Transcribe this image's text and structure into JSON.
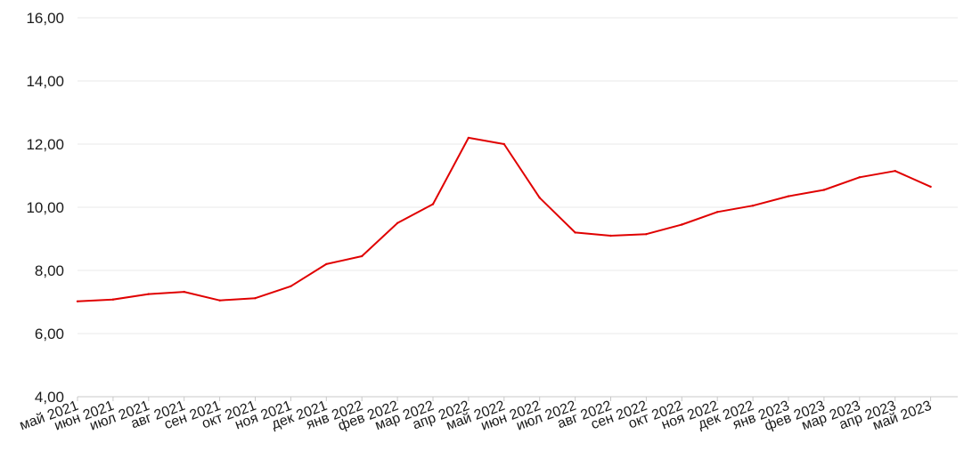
{
  "chart_data": {
    "type": "line",
    "title": "",
    "xlabel": "",
    "ylabel": "",
    "ylim": [
      4,
      16
    ],
    "yticks": [
      "4,00",
      "6,00",
      "8,00",
      "10,00",
      "12,00",
      "14,00",
      "16,00"
    ],
    "ytick_values": [
      4,
      6,
      8,
      10,
      12,
      14,
      16
    ],
    "xticks": [
      "май 2021",
      "июн 2021",
      "июл 2021",
      "авг 2021",
      "сен 2021",
      "окт 2021",
      "ноя 2021",
      "дек 2021",
      "янв 2022",
      "фев 2022",
      "мар 2022",
      "апр 2022",
      "май 2022",
      "июн 2022",
      "июл 2022",
      "авг 2022",
      "сен 2022",
      "окт 2022",
      "ноя 2022",
      "дек 2022",
      "янв 2023",
      "фев 2023",
      "мар 2023",
      "апр 2023",
      "май 2023"
    ],
    "grid": true,
    "colors": {
      "line": "#e00000"
    },
    "series": [
      {
        "points": [
          [
            "май 2021",
            7.02
          ],
          [
            "июн 2021",
            7.08
          ],
          [
            "июл 2021",
            7.25
          ],
          [
            "авг 2021",
            7.32
          ],
          [
            "сен 2021",
            7.05
          ],
          [
            "окт 2021",
            7.12
          ],
          [
            "ноя 2021",
            7.5
          ],
          [
            "дек 2021",
            8.2
          ],
          [
            "янв 2022",
            8.45
          ],
          [
            "фев 2022",
            9.5
          ],
          [
            "мар 2022",
            10.1
          ],
          [
            "апр 2022",
            12.2
          ],
          [
            "май 2022",
            12.0
          ],
          [
            "июн 2022",
            10.3
          ],
          [
            "июл 2022",
            9.2
          ],
          [
            "авг 2022",
            9.1
          ],
          [
            "сен 2022",
            9.15
          ],
          [
            "окт 2022",
            9.45
          ],
          [
            "ноя 2022",
            9.85
          ],
          [
            "дек 2022",
            10.05
          ],
          [
            "янв 2023",
            10.35
          ],
          [
            "фев 2023",
            10.55
          ],
          [
            "мар 2023",
            10.95
          ],
          [
            "апр 2023",
            11.15
          ],
          [
            "май 2023",
            10.65
          ]
        ]
      }
    ]
  }
}
